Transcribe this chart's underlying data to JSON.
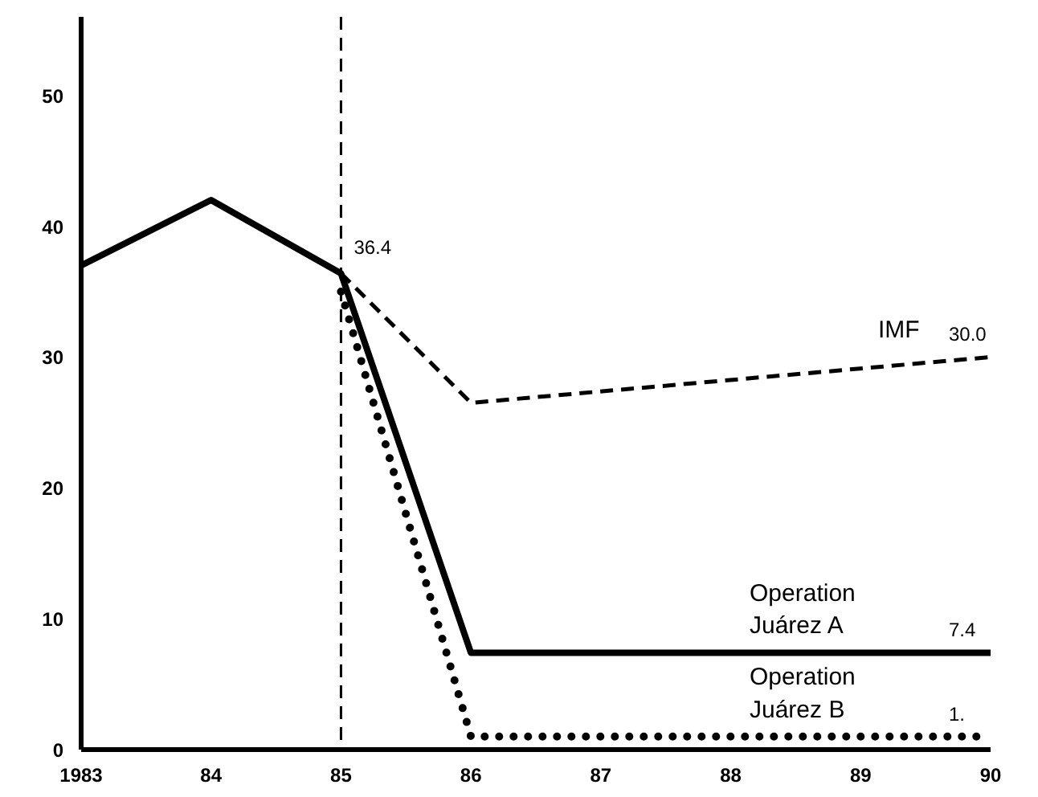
{
  "chart_data": {
    "type": "line",
    "xlim": [
      1983,
      1990
    ],
    "xticks": [
      {
        "value": 1983,
        "label": "1983"
      },
      {
        "value": 1984,
        "label": "84"
      },
      {
        "value": 1985,
        "label": "85"
      },
      {
        "value": 1986,
        "label": "86"
      },
      {
        "value": 1987,
        "label": "87"
      },
      {
        "value": 1988,
        "label": "88"
      },
      {
        "value": 1989,
        "label": "89"
      },
      {
        "value": 1990,
        "label": "90"
      }
    ],
    "ylim": [
      0,
      56
    ],
    "yticks": [
      0,
      10,
      20,
      30,
      40,
      50
    ],
    "grid": false,
    "ref_lines": [
      {
        "axis": "x",
        "value": 1985,
        "line_style": "dashed",
        "color": "#000000"
      }
    ],
    "series": [
      {
        "name": "Operation Juárez A",
        "color": "#000000",
        "line_style": "solid",
        "x": [
          1983,
          1984,
          1985,
          1986,
          1990
        ],
        "values": [
          37,
          42,
          36.4,
          7.4,
          7.4
        ],
        "value_labels": [
          null,
          null,
          "36.4",
          null,
          "7.4"
        ]
      },
      {
        "name": "IMF",
        "color": "#000000",
        "line_style": "dashed",
        "x": [
          1985,
          1986,
          1990
        ],
        "values": [
          36.4,
          26.5,
          30.0
        ],
        "value_labels": [
          null,
          null,
          "30.0"
        ]
      },
      {
        "name": "Operation Juárez B",
        "color": "#000000",
        "line_style": "dotted",
        "x": [
          1985,
          1986,
          1990
        ],
        "values": [
          35,
          1,
          1
        ],
        "value_labels": [
          null,
          null,
          "1."
        ]
      }
    ]
  }
}
